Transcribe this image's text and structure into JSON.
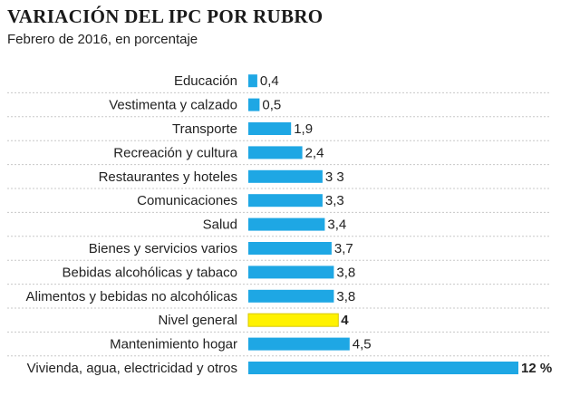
{
  "header": {
    "title": "VARIACIÓN DEL IPC POR RUBRO",
    "subtitle": "Febrero de 2016, en porcentaje"
  },
  "colors": {
    "bar": "#1ea7e4",
    "highlight": "#fff200",
    "highlight_border": "#d8c800",
    "separator": "#c8c8c8"
  },
  "chart_data": {
    "type": "bar",
    "orientation": "horizontal",
    "title": "VARIACIÓN DEL IPC POR RUBRO",
    "subtitle": "Febrero de 2016, en porcentaje",
    "xlim": [
      0,
      12
    ],
    "grid": false,
    "legend": "none",
    "categories": [
      "Educación",
      "Vestimenta y calzado",
      "Transporte",
      "Recreación y cultura",
      "Restaurantes y hoteles",
      "Comunicaciones",
      "Salud",
      "Bienes y servicios varios",
      "Bebidas alcohólicas y tabaco",
      "Alimentos y bebidas no alcohólicas",
      "Nivel general",
      "Mantenimiento hogar",
      "Vivienda, agua, electricidad y otros"
    ],
    "values": [
      0.4,
      0.5,
      1.9,
      2.4,
      3.3,
      3.3,
      3.4,
      3.7,
      3.8,
      3.8,
      4,
      4.5,
      12
    ],
    "value_labels": [
      "0,4",
      "0,5",
      "1,9",
      "2,4",
      "3 3",
      "3,3",
      "3,4",
      "3,7",
      "3,8",
      "3,8",
      "4",
      "4,5",
      "12 %"
    ],
    "highlight_category": "Nivel general"
  }
}
